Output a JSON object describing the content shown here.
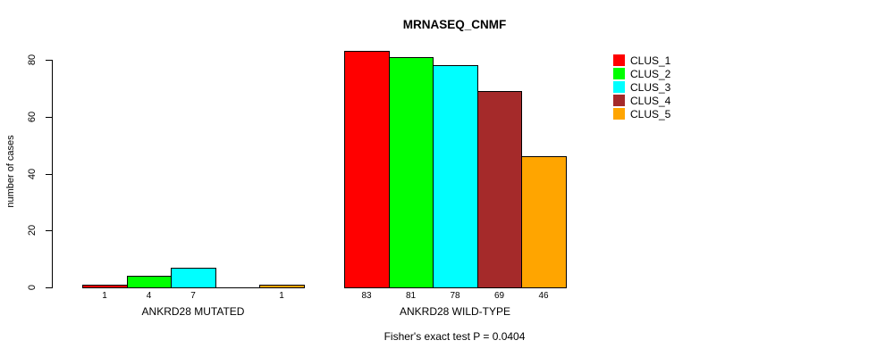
{
  "chart_data": {
    "type": "bar",
    "title": "MRNASEQ_CNMF",
    "ylabel": "number of cases",
    "xlabel": "",
    "ylim": [
      0,
      80
    ],
    "yticks": [
      0,
      20,
      40,
      60,
      80
    ],
    "grid": false,
    "legend_position": "top-right",
    "series_names": [
      "CLUS_1",
      "CLUS_2",
      "CLUS_3",
      "CLUS_4",
      "CLUS_5"
    ],
    "colors": [
      "#ff0000",
      "#00ff00",
      "#00ffff",
      "#a52a2a",
      "#ffa500"
    ],
    "categories": [
      "ANKRD28 MUTATED",
      "ANKRD28 WILD-TYPE"
    ],
    "groups": [
      {
        "label": "ANKRD28 MUTATED",
        "values": [
          1,
          4,
          7,
          0,
          1
        ],
        "bar_labels": [
          "1",
          "4",
          "7",
          "",
          "1"
        ]
      },
      {
        "label": "ANKRD28 WILD-TYPE",
        "values": [
          83,
          81,
          78,
          69,
          46
        ],
        "bar_labels": [
          "83",
          "81",
          "78",
          "69",
          "46"
        ]
      }
    ],
    "caption": "Fisher's exact test P = 0.0404"
  }
}
